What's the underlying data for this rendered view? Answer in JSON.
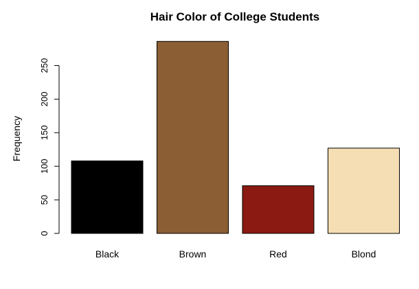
{
  "chart_data": {
    "type": "bar",
    "title": "Hair Color of College Students",
    "xlabel": "",
    "ylabel": "Frequency",
    "categories": [
      "Black",
      "Brown",
      "Red",
      "Blond"
    ],
    "values": [
      108,
      286,
      71,
      127
    ],
    "colors": [
      "#000000",
      "#8B5E34",
      "#8B1A12",
      "#F5DEB3"
    ],
    "ylim": [
      0,
      286
    ],
    "yticks": [
      0,
      50,
      100,
      150,
      200,
      250
    ],
    "grid": false,
    "legend": "none"
  }
}
